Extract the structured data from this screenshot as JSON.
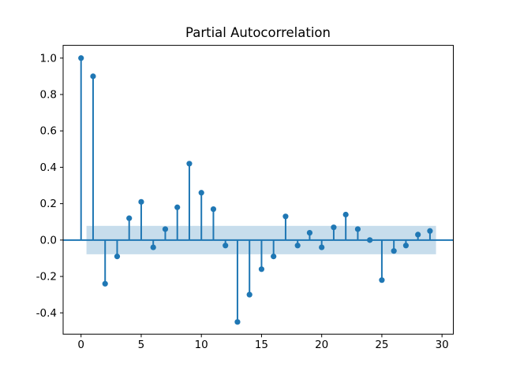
{
  "figure": {
    "title": "Partial Autocorrelation"
  },
  "chart_data": {
    "type": "stem",
    "title": "Partial Autocorrelation",
    "xlabel": "",
    "ylabel": "",
    "x": [
      0,
      1,
      2,
      3,
      4,
      5,
      6,
      7,
      8,
      9,
      10,
      11,
      12,
      13,
      14,
      15,
      16,
      17,
      18,
      19,
      20,
      21,
      22,
      23,
      24,
      25,
      26,
      27,
      28,
      29
    ],
    "values": [
      1.0,
      0.9,
      -0.24,
      -0.09,
      0.12,
      0.21,
      -0.04,
      0.06,
      0.18,
      0.42,
      0.26,
      0.17,
      -0.03,
      -0.45,
      -0.3,
      -0.16,
      -0.09,
      0.13,
      -0.03,
      0.04,
      -0.04,
      0.07,
      0.14,
      0.06,
      0.0,
      -0.22,
      -0.06,
      -0.03,
      0.03,
      0.05
    ],
    "confidence_band": {
      "upper": 0.078,
      "lower": -0.078,
      "x_start": 0.45,
      "x_end": 29.5
    },
    "zero_line": 0.0,
    "xticks": [
      "0",
      "5",
      "10",
      "15",
      "20",
      "25",
      "30"
    ],
    "xtick_values": [
      0,
      5,
      10,
      15,
      20,
      25,
      30
    ],
    "yticks": [
      "-0.4",
      "-0.2",
      "0.0",
      "0.2",
      "0.4",
      "0.6",
      "0.8",
      "1.0"
    ],
    "ytick_values": [
      -0.4,
      -0.2,
      0.0,
      0.2,
      0.4,
      0.6,
      0.8,
      1.0
    ],
    "xlim": [
      -1.49,
      30.94
    ],
    "ylim": [
      -0.517,
      1.07
    ],
    "grid": false,
    "legend": null,
    "colors": {
      "stem": "#1f77b4",
      "marker": "#1f77b4",
      "band": "rgba(31,119,180,0.25)",
      "axis": "#000000",
      "background": "#ffffff"
    }
  }
}
